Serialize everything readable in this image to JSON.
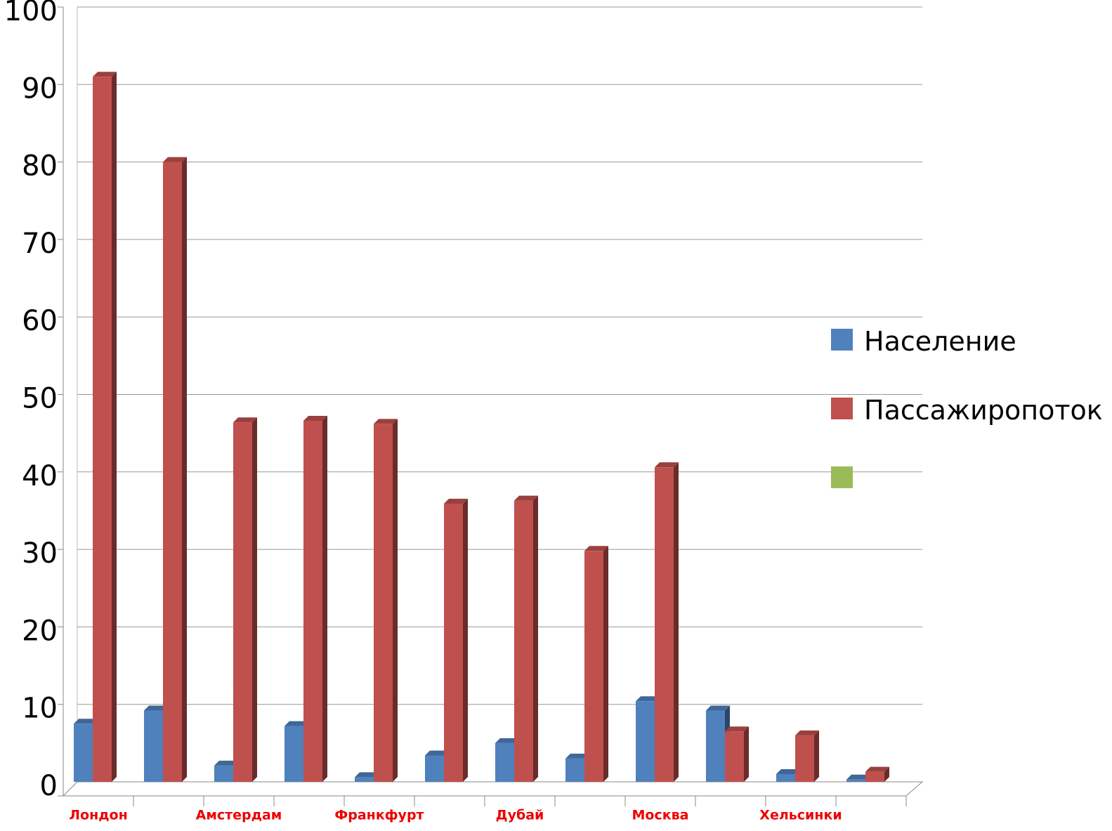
{
  "chart_data": {
    "type": "bar",
    "categories": [
      "Лондон",
      null,
      "Амстердам",
      null,
      "Франкфурт",
      null,
      "Дубай",
      null,
      "Москва",
      null,
      "Хельсинки",
      null
    ],
    "series": [
      {
        "name": "Население",
        "color": "#4f81bd",
        "values": [
          7.5,
          9.2,
          2.1,
          7.2,
          0.6,
          3.4,
          5.0,
          3.0,
          10.4,
          9.2,
          1.0,
          0.3
        ]
      },
      {
        "name": "Пассажиропоток",
        "color": "#c0504d",
        "values": [
          91,
          80,
          46.4,
          46.6,
          46.2,
          35.9,
          36.3,
          29.8,
          40.6,
          6.5,
          6.0,
          1.3
        ]
      },
      {
        "color": "#9bbb59",
        "values": [
          null,
          null,
          null,
          null,
          null,
          null,
          null,
          null,
          null,
          null,
          null,
          null
        ]
      }
    ],
    "ylim": [
      0,
      100
    ],
    "yticks": [
      0,
      10,
      20,
      30,
      40,
      50,
      60,
      70,
      80,
      90,
      100
    ],
    "grid": true
  }
}
